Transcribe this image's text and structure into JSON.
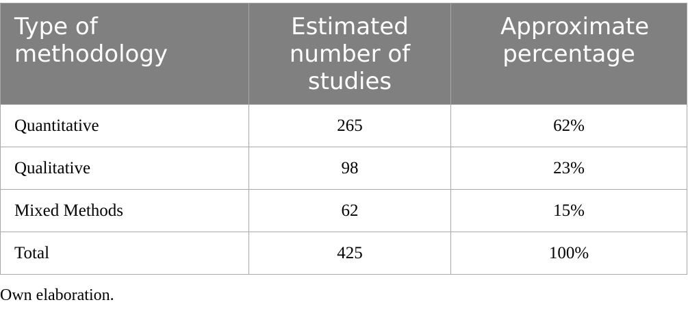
{
  "table": {
    "headers": [
      "Type of methodology",
      "Estimated number of studies",
      "Approximate percentage"
    ],
    "rows": [
      [
        "Quantitative",
        "265",
        "62%"
      ],
      [
        "Qualitative",
        "98",
        "23%"
      ],
      [
        "Mixed Methods",
        "62",
        "15%"
      ],
      [
        "Total",
        "425",
        "100%"
      ]
    ]
  },
  "note": "Own elaboration.",
  "colors": {
    "header_background": "#808080",
    "header_text": "#ffffff",
    "border": "#a8a8a8"
  }
}
